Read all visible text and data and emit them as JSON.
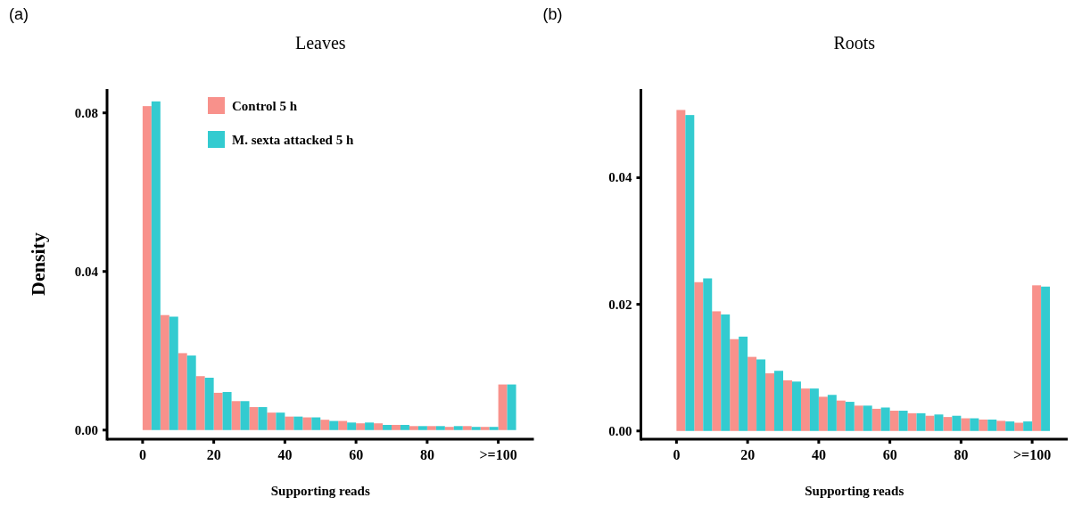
{
  "chart_data": [
    {
      "type": "histogram",
      "title": "Leaves",
      "xlabel": "Supporting reads",
      "ylabel": "Density",
      "annotations": [
        "(a)"
      ],
      "bins": [
        -5,
        0,
        5,
        10,
        15,
        20,
        25,
        30,
        35,
        40,
        45,
        50,
        55,
        60,
        65,
        70,
        75,
        80,
        85,
        90,
        95,
        100,
        105
      ],
      "series": [
        {
          "name": "Control 5 h",
          "color": "#f8918b",
          "values": [
            0,
            0.0817,
            0.029,
            0.0194,
            0.0136,
            0.0094,
            0.0073,
            0.0058,
            0.0044,
            0.0034,
            0.0032,
            0.0026,
            0.0023,
            0.0017,
            0.0017,
            0.0013,
            0.001,
            0.001,
            0.0008,
            0.001,
            0.0008,
            0.0115
          ]
        },
        {
          "name": "M. sexta attacked 5 h",
          "color": "#33cbd0",
          "values": [
            0,
            0.0829,
            0.0286,
            0.0188,
            0.0132,
            0.0096,
            0.0073,
            0.0058,
            0.0044,
            0.0034,
            0.0032,
            0.0023,
            0.0019,
            0.0019,
            0.0013,
            0.0013,
            0.001,
            0.001,
            0.001,
            0.0008,
            0.0008,
            0.0115
          ]
        }
      ],
      "xlim": [
        -10,
        110
      ],
      "xticks": [
        0,
        20,
        40,
        60,
        80,
        {
          "value": 100,
          "label": ">=100"
        }
      ],
      "ylim": [
        -0.0023,
        0.086
      ],
      "yticks": [
        {
          "value": 0,
          "label": "0.00"
        },
        0.04,
        0.08
      ],
      "grid": false,
      "legend": "top"
    },
    {
      "type": "histogram",
      "title": "Roots",
      "xlabel": "Supporting reads",
      "annotations": [
        "(b)"
      ],
      "bins": [
        -5,
        0,
        5,
        10,
        15,
        20,
        25,
        30,
        35,
        40,
        45,
        50,
        55,
        60,
        65,
        70,
        75,
        80,
        85,
        90,
        95,
        100,
        105
      ],
      "series": [
        {
          "color": "#f8918b",
          "values": [
            0,
            0.0507,
            0.0235,
            0.0189,
            0.0145,
            0.0117,
            0.0091,
            0.008,
            0.0067,
            0.0054,
            0.0048,
            0.004,
            0.0035,
            0.0032,
            0.0028,
            0.0024,
            0.0022,
            0.002,
            0.0018,
            0.0016,
            0.0013,
            0.023
          ]
        },
        {
          "color": "#33cbd0",
          "values": [
            0,
            0.0499,
            0.0241,
            0.0184,
            0.0149,
            0.0113,
            0.0095,
            0.0078,
            0.0067,
            0.0057,
            0.0046,
            0.004,
            0.0037,
            0.0032,
            0.0028,
            0.0026,
            0.0024,
            0.002,
            0.0018,
            0.0015,
            0.0015,
            0.0228
          ]
        }
      ],
      "xlim": [
        -10,
        110
      ],
      "xticks": [
        0,
        20,
        40,
        60,
        80,
        {
          "value": 100,
          "label": ">=100"
        }
      ],
      "ylim": [
        -0.0013,
        0.054
      ],
      "yticks": [
        {
          "value": 0,
          "label": "0.00"
        },
        0.02,
        0.04
      ],
      "grid": false
    }
  ]
}
